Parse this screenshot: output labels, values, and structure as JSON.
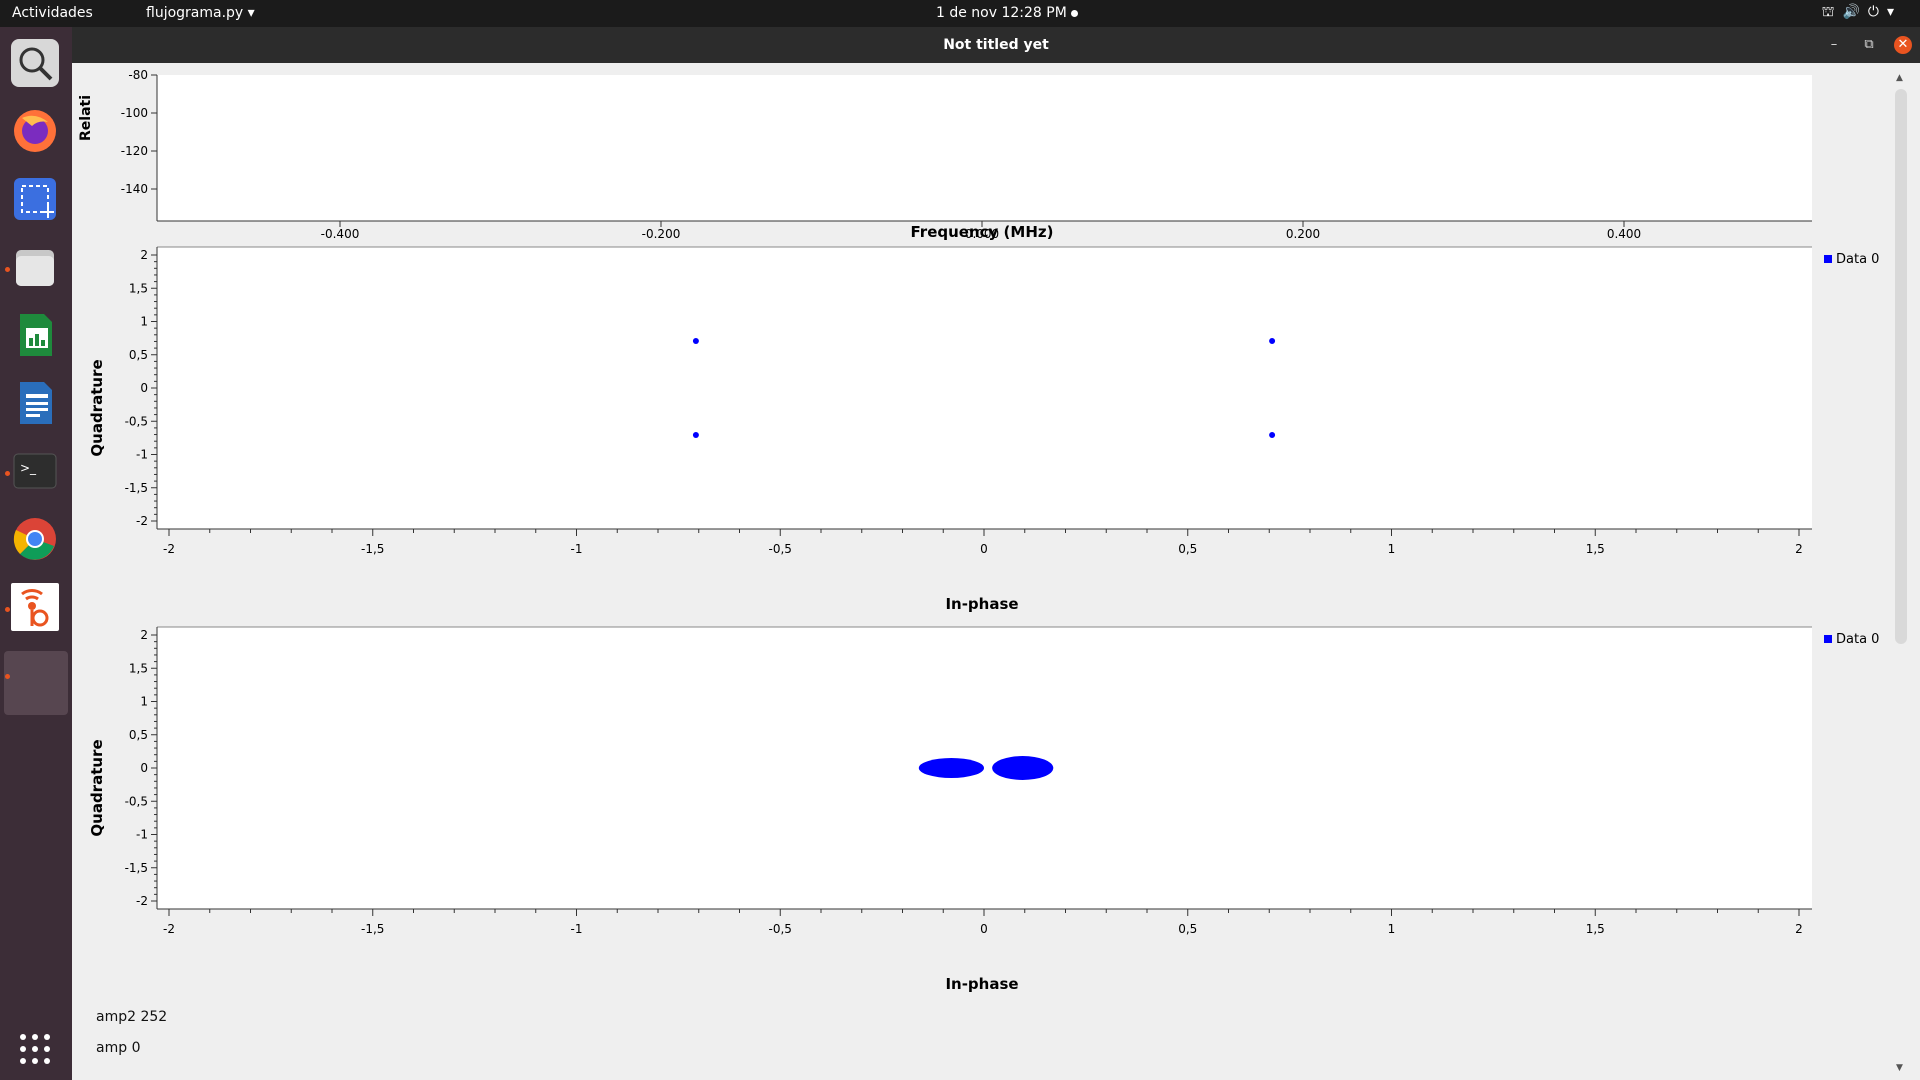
{
  "topbar": {
    "activities": "Actividades",
    "app_menu": "flujograma.py",
    "clock": "1 de nov  12:28 PM"
  },
  "window": {
    "title": "Not titled yet"
  },
  "freq_plot": {
    "ylabel": "Relati",
    "xlabel": "Frequency (MHz)",
    "y_ticks": [
      "-80",
      "-100",
      "-120",
      "-140"
    ],
    "x_ticks": [
      "-0.400",
      "-0.200",
      "0.000",
      "0.200",
      "0.400"
    ]
  },
  "chart_data": [
    {
      "type": "scatter",
      "xlabel": "In-phase",
      "ylabel": "Quadrature",
      "xlim": [
        -2,
        2
      ],
      "ylim": [
        -2,
        2
      ],
      "x_ticks": [
        "-2",
        "-1,5",
        "-1",
        "-0,5",
        "0",
        "0,5",
        "1",
        "1,5",
        "2"
      ],
      "y_ticks": [
        "2",
        "1,5",
        "1",
        "0,5",
        "0",
        "-0,5",
        "-1",
        "-1,5",
        "-2"
      ],
      "legend_position": "right",
      "color": "#0000ff",
      "series": [
        {
          "name": "Data 0",
          "points": [
            [
              -0.707,
              0.707
            ],
            [
              0.707,
              0.707
            ],
            [
              -0.707,
              -0.707
            ],
            [
              0.707,
              -0.707
            ]
          ]
        }
      ]
    },
    {
      "type": "scatter",
      "xlabel": "In-phase",
      "ylabel": "Quadrature",
      "xlim": [
        -2,
        2
      ],
      "ylim": [
        -2,
        2
      ],
      "x_ticks": [
        "-2",
        "-1,5",
        "-1",
        "-0,5",
        "0",
        "0,5",
        "1",
        "1,5",
        "2"
      ],
      "y_ticks": [
        "2",
        "1,5",
        "1",
        "0,5",
        "0",
        "-0,5",
        "-1",
        "-1,5",
        "-2"
      ],
      "legend_position": "right",
      "color": "#0000ff",
      "series": [
        {
          "name": "Data 0",
          "clusters": [
            {
              "x_range": [
                -0.16,
                0.0
              ],
              "y_range": [
                -0.15,
                0.15
              ]
            },
            {
              "x_range": [
                0.02,
                0.17
              ],
              "y_range": [
                -0.18,
                0.18
              ]
            }
          ]
        }
      ]
    }
  ],
  "controls": {
    "amp2_label": "amp2",
    "amp2_value": "252",
    "amp_label": "amp",
    "amp_value": "0"
  },
  "dock_icons": [
    "search-icon",
    "firefox-icon",
    "screenshot-icon",
    "files-icon",
    "calc-icon",
    "writer-icon",
    "terminal-icon",
    "chrome-icon",
    "gnuradio-icon",
    "app-window-icon",
    "show-apps-icon"
  ]
}
